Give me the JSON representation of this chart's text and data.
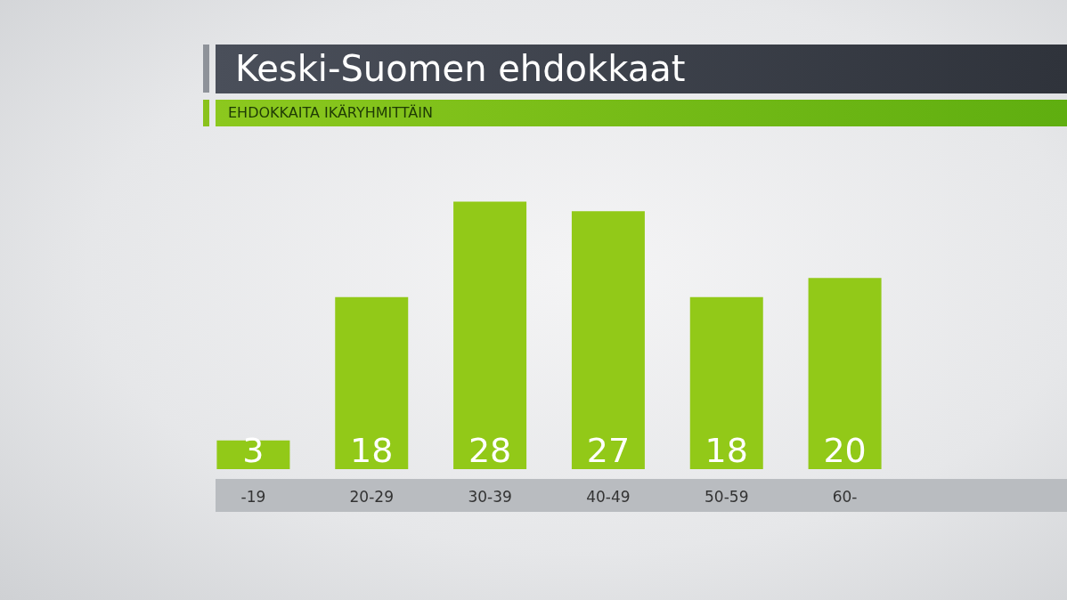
{
  "chart_data": {
    "type": "bar",
    "title": "Keski-Suomen ehdokkaat",
    "subtitle": "EHDOKKAITA IKÄRYHMITTÄIN",
    "categories": [
      "-19",
      "20-29",
      "30-39",
      "40-49",
      "50-59",
      "60-"
    ],
    "values": [
      3,
      18,
      28,
      27,
      18,
      20
    ],
    "color": "#92c918",
    "data_labels": true,
    "grid": false
  }
}
